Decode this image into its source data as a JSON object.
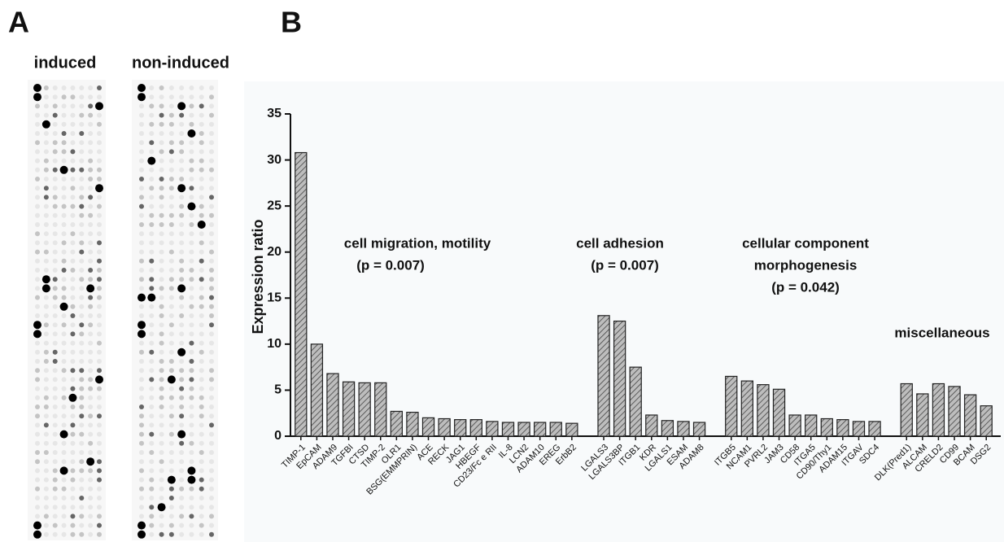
{
  "panels": {
    "a": "A",
    "b": "B"
  },
  "blots": {
    "left": "induced",
    "right": "non-induced"
  },
  "chart_data": {
    "type": "bar",
    "ylabel": "Expression ratio",
    "color": "#bdbdbd",
    "ylim": [
      0,
      35
    ],
    "yticks": [
      0,
      5,
      10,
      15,
      20,
      25,
      30,
      35
    ],
    "categories": [
      "TIMP-1",
      "EpCAM",
      "ADAM9",
      "TGFBI",
      "CTSD",
      "TIMP-2",
      "OLR1",
      "BSG(EMMPRIN)",
      "ACE",
      "RECK",
      "JAG1",
      "HBEGF",
      "CD23/Fc e RII",
      "IL-8",
      "LCN2",
      "ADAM10",
      "EREG",
      "ErbB2",
      null,
      "LGALS3",
      "LGALS3BP",
      "ITGB1",
      "KDR",
      "LGALS1",
      "ESAM",
      "ADAM8",
      null,
      "ITGB5",
      "NCAM1",
      "PVRL2",
      "JAM3",
      "CD58",
      "ITGA5",
      "CD90/Thy1",
      "ADAM15",
      "ITGAV",
      "SDC4",
      null,
      "DLK(Pred1)",
      "ALCAM",
      "CRELD2",
      "CD99",
      "BCAM",
      "DSG2"
    ],
    "values": [
      30.8,
      10,
      6.8,
      5.9,
      5.8,
      5.8,
      2.7,
      2.6,
      2.0,
      1.9,
      1.8,
      1.8,
      1.6,
      1.5,
      1.5,
      1.5,
      1.5,
      1.4,
      null,
      13.1,
      12.5,
      7.5,
      2.3,
      1.7,
      1.6,
      1.5,
      null,
      6.5,
      6.0,
      5.6,
      5.1,
      2.3,
      2.3,
      1.9,
      1.8,
      1.6,
      1.6,
      null,
      5.7,
      4.6,
      5.7,
      5.4,
      4.5,
      3.3
    ],
    "annotations": [
      "cell migration, motility",
      "(p = 0.007)",
      "cell adhesion",
      "(p = 0.007)",
      "cellular component",
      "morphogenesis",
      "(p = 0.042)",
      "miscellaneous"
    ]
  }
}
